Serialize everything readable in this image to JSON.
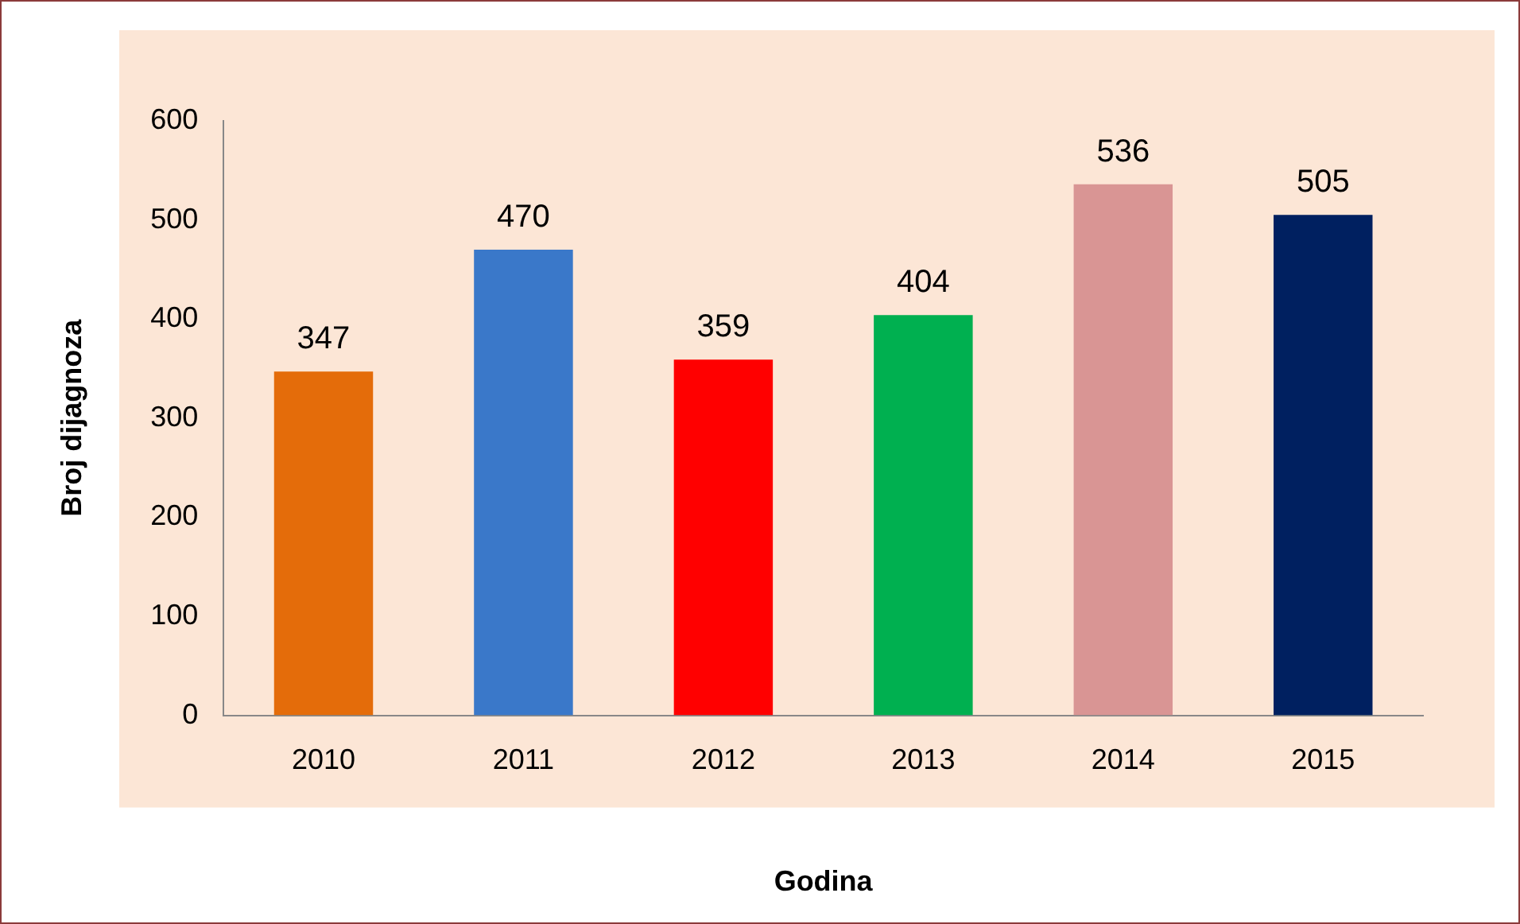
{
  "chart_data": {
    "type": "bar",
    "xlabel": "Godina",
    "ylabel": "Broj dijagnoza",
    "categories": [
      "2010",
      "2011",
      "2012",
      "2013",
      "2014",
      "2015"
    ],
    "values": [
      347,
      470,
      359,
      404,
      536,
      505
    ],
    "colors": [
      "#e46c0a",
      "#3a78c9",
      "#ff0000",
      "#00b050",
      "#d99594",
      "#002060"
    ],
    "ylim": [
      0,
      600
    ],
    "yticks": [
      0,
      100,
      200,
      300,
      400,
      500,
      600
    ],
    "grid": false,
    "legend": false,
    "data_labels": true
  }
}
